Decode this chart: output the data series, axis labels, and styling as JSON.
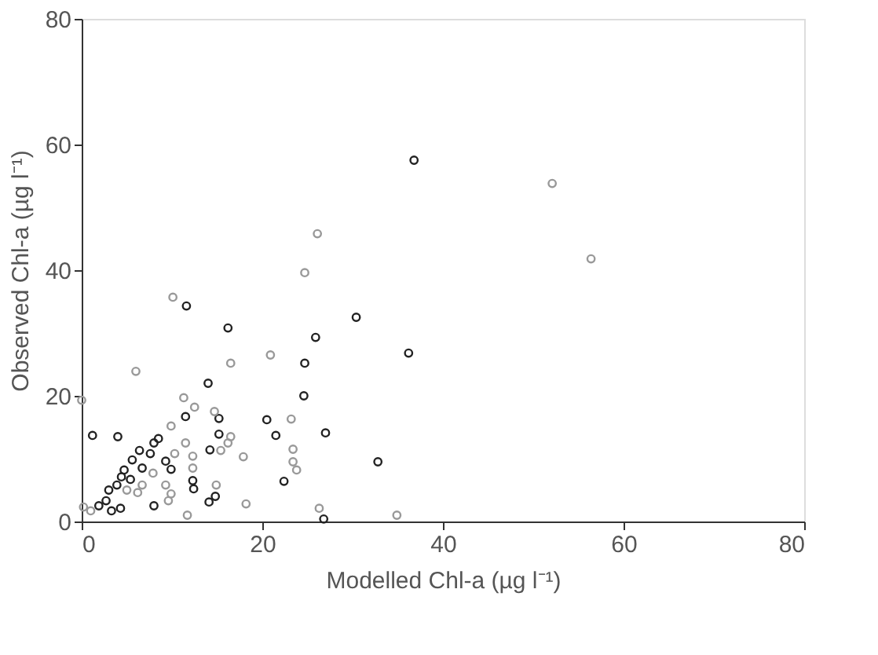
{
  "chart_data": {
    "type": "scatter",
    "xlabel": "Modelled Chl-a (µg l⁻¹)",
    "ylabel": "Observed Chl-a (µg l⁻¹)",
    "xlim": [
      0,
      80
    ],
    "ylim": [
      0,
      80
    ],
    "xticks": [
      0,
      20,
      40,
      60,
      80
    ],
    "yticks": [
      0,
      20,
      40,
      60,
      80
    ],
    "grid": false,
    "legend": false,
    "marker": "circle",
    "series": [
      {
        "color": "#222222",
        "x": [
          36.8,
          30.4,
          36.2,
          32.8,
          11.6,
          16.2,
          25.9,
          24.7,
          14.0,
          24.6,
          11.5,
          15.2,
          20.5,
          1.2,
          4.0,
          21.5,
          27.0,
          8.5,
          8.0,
          6.4,
          7.6,
          15.2,
          14.2,
          9.3,
          9.9,
          5.6,
          4.7,
          6.7,
          12.3,
          12.4,
          14.8,
          14.1,
          8.0,
          3.9,
          3.0,
          2.7,
          1.9,
          3.3,
          4.3,
          5.4,
          4.4,
          22.4,
          26.8
        ],
        "values": [
          57.5,
          32.5,
          26.8,
          9.5,
          34.3,
          30.8,
          29.3,
          25.2,
          22.0,
          20.0,
          16.7,
          16.4,
          16.2,
          13.7,
          13.5,
          13.7,
          14.1,
          13.2,
          12.5,
          11.3,
          10.8,
          13.9,
          11.4,
          9.6,
          8.3,
          9.8,
          8.2,
          8.5,
          6.5,
          5.2,
          4.0,
          3.1,
          2.5,
          5.8,
          5.0,
          3.3,
          2.5,
          1.7,
          2.1,
          6.7,
          7.1,
          6.4,
          0.4
        ]
      },
      {
        "color": "#999999",
        "x": [
          52.1,
          56.4,
          34.9,
          10.1,
          20.9,
          16.5,
          6.0,
          0.0,
          11.3,
          12.5,
          14.7,
          23.2,
          9.9,
          11.5,
          16.5,
          16.2,
          15.4,
          17.9,
          12.3,
          10.3,
          7.9,
          12.3,
          14.9,
          18.2,
          9.3,
          9.6,
          9.9,
          6.2,
          6.7,
          5.0,
          1.0,
          0.2,
          23.4,
          23.4,
          23.8,
          11.7,
          26.3,
          24.7,
          26.1
        ],
        "values": [
          53.8,
          41.8,
          1.0,
          35.7,
          26.5,
          25.2,
          23.9,
          19.3,
          19.7,
          18.2,
          17.5,
          16.3,
          15.2,
          12.5,
          13.5,
          12.5,
          11.3,
          10.3,
          10.4,
          10.8,
          7.7,
          8.5,
          5.8,
          2.8,
          5.8,
          3.3,
          4.4,
          4.6,
          5.8,
          5.0,
          1.7,
          2.3,
          11.5,
          9.5,
          8.2,
          1.0,
          2.1,
          39.6,
          45.8
        ]
      }
    ]
  }
}
